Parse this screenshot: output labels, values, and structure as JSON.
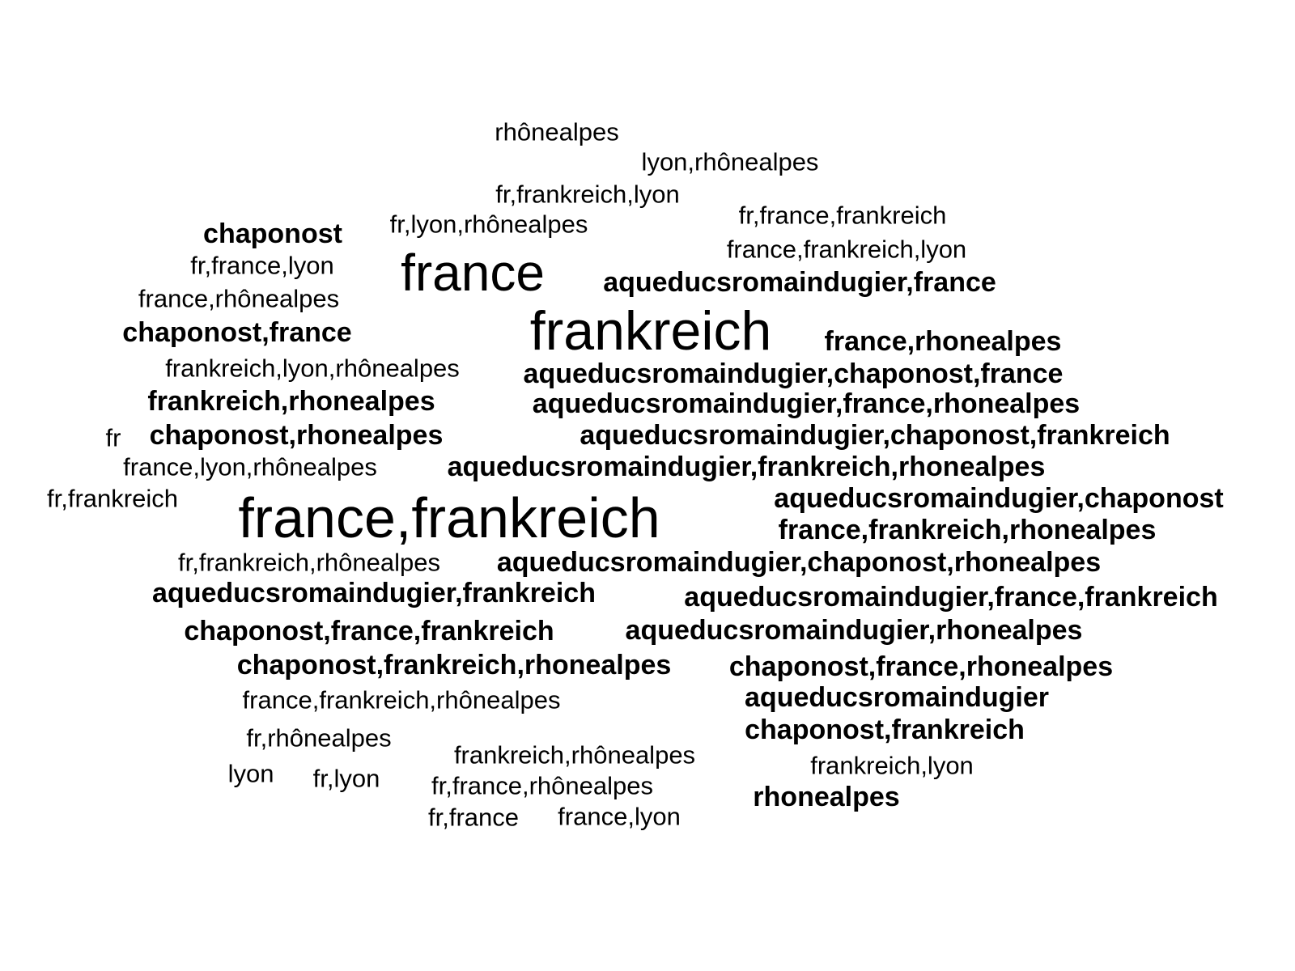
{
  "text_color": "#000000",
  "background_color": "#ffffff",
  "words": [
    {
      "text": "rhônealpes",
      "weight": 1
    },
    {
      "text": "lyon,rhônealpes",
      "weight": 1
    },
    {
      "text": "fr,frankreich,lyon",
      "weight": 1
    },
    {
      "text": "fr,france,frankreich",
      "weight": 1
    },
    {
      "text": "fr,lyon,rhônealpes",
      "weight": 1
    },
    {
      "text": "chaponost",
      "weight": 2
    },
    {
      "text": "france,frankreich,lyon",
      "weight": 1
    },
    {
      "text": "fr,france,lyon",
      "weight": 1
    },
    {
      "text": "france",
      "weight": 5
    },
    {
      "text": "aqueducsromaindugier,france",
      "weight": 2
    },
    {
      "text": "france,rhônealpes",
      "weight": 1
    },
    {
      "text": "chaponost,france",
      "weight": 2
    },
    {
      "text": "frankreich",
      "weight": 6
    },
    {
      "text": "france,rhonealpes",
      "weight": 2
    },
    {
      "text": "frankreich,lyon,rhônealpes",
      "weight": 1
    },
    {
      "text": "aqueducsromaindugier,chaponost,france",
      "weight": 2
    },
    {
      "text": "frankreich,rhonealpes",
      "weight": 2
    },
    {
      "text": "aqueducsromaindugier,france,rhonealpes",
      "weight": 2
    },
    {
      "text": "fr",
      "weight": 1
    },
    {
      "text": "chaponost,rhonealpes",
      "weight": 2
    },
    {
      "text": "aqueducsromaindugier,chaponost,frankreich",
      "weight": 2
    },
    {
      "text": "france,lyon,rhônealpes",
      "weight": 1
    },
    {
      "text": "aqueducsromaindugier,frankreich,rhonealpes",
      "weight": 2
    },
    {
      "text": "fr,frankreich",
      "weight": 1
    },
    {
      "text": "france,frankreich",
      "weight": 6
    },
    {
      "text": "aqueducsromaindugier,chaponost",
      "weight": 2
    },
    {
      "text": "france,frankreich,rhonealpes",
      "weight": 2
    },
    {
      "text": "fr,frankreich,rhônealpes",
      "weight": 1
    },
    {
      "text": "aqueducsromaindugier,chaponost,rhonealpes",
      "weight": 2
    },
    {
      "text": "aqueducsromaindugier,frankreich",
      "weight": 2
    },
    {
      "text": "aqueducsromaindugier,france,frankreich",
      "weight": 2
    },
    {
      "text": "chaponost,france,frankreich",
      "weight": 2
    },
    {
      "text": "aqueducsromaindugier,rhonealpes",
      "weight": 2
    },
    {
      "text": "chaponost,frankreich,rhonealpes",
      "weight": 2
    },
    {
      "text": "chaponost,france,rhonealpes",
      "weight": 2
    },
    {
      "text": "france,frankreich,rhônealpes",
      "weight": 1
    },
    {
      "text": "aqueducsromaindugier",
      "weight": 2
    },
    {
      "text": "fr,rhônealpes",
      "weight": 1
    },
    {
      "text": "chaponost,frankreich",
      "weight": 2
    },
    {
      "text": "frankreich,rhônealpes",
      "weight": 1
    },
    {
      "text": "frankreich,lyon",
      "weight": 1
    },
    {
      "text": "lyon",
      "weight": 1
    },
    {
      "text": "fr,lyon",
      "weight": 1
    },
    {
      "text": "fr,france,rhônealpes",
      "weight": 1
    },
    {
      "text": "rhonealpes",
      "weight": 2
    },
    {
      "text": "fr,france",
      "weight": 1
    },
    {
      "text": "france,lyon",
      "weight": 1
    }
  ]
}
